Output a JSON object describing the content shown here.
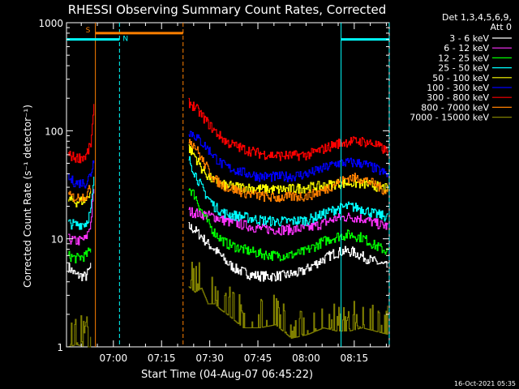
{
  "chart_data": {
    "type": "line",
    "title": "RHESSI Observing Summary Count Rates, Corrected",
    "xlabel": "Start Time (04-Aug-07 06:45:22)",
    "ylabel": "Corrected Count Rate (s⁻¹ detector⁻¹)",
    "yscale": "log",
    "ylim": [
      1,
      1000
    ],
    "x_units": "minutes after 06:45:22",
    "xlim": [
      0,
      100.5
    ],
    "x_ticks": [
      {
        "t": 14.6,
        "label": "07:00"
      },
      {
        "t": 29.6,
        "label": "07:15"
      },
      {
        "t": 44.6,
        "label": "07:30"
      },
      {
        "t": 59.6,
        "label": "07:45"
      },
      {
        "t": 74.6,
        "label": "08:00"
      },
      {
        "t": 89.6,
        "label": "08:15"
      }
    ],
    "y_ticks": [
      {
        "v": 1,
        "label": "1"
      },
      {
        "v": 10,
        "label": "10"
      },
      {
        "v": 100,
        "label": "100"
      },
      {
        "v": 1000,
        "label": "1000"
      }
    ],
    "legend": {
      "header": [
        "Det 1,3,4,5,6,9,",
        "Att 0"
      ],
      "placement": "top-right outside"
    },
    "series": [
      {
        "name": "3 - 6 keV",
        "color": "#ffffff",
        "segments": [
          {
            "x": [
              0.5,
              3,
              6,
              7.5
            ],
            "y": [
              5.5,
              4.6,
              4.5,
              5.5
            ]
          },
          {
            "x": [
              38,
              40,
              42,
              44,
              46,
              48,
              50,
              53,
              58,
              63,
              68,
              73,
              78,
              83,
              86,
              89,
              94,
              100
            ],
            "y": [
              13,
              12,
              10.5,
              9,
              8,
              7,
              6,
              5.2,
              4.6,
              4.5,
              4.6,
              4.9,
              6,
              7.3,
              7.7,
              7.6,
              6.5,
              5.5
            ]
          }
        ]
      },
      {
        "name": "6 - 12 keV",
        "color": "#ff33ff",
        "segments": [
          {
            "x": [
              0.5,
              3,
              6,
              7.5,
              8.5
            ],
            "y": [
              10,
              9.5,
              10,
              14,
              30
            ]
          },
          {
            "x": [
              38,
              42,
              46,
              50,
              55,
              60,
              65,
              70,
              75,
              80,
              84,
              88,
              92,
              96,
              100
            ],
            "y": [
              18,
              17,
              16,
              14.5,
              13.5,
              12.5,
              12.2,
              12.2,
              12.5,
              14,
              15.5,
              16,
              15.5,
              14,
              13
            ]
          }
        ]
      },
      {
        "name": "12 - 25 keV",
        "color": "#00ff00",
        "segments": [
          {
            "x": [
              0.5,
              3,
              6,
              7.5
            ],
            "y": [
              7,
              6.6,
              7,
              8
            ]
          },
          {
            "x": [
              38,
              40,
              42,
              44,
              46,
              48,
              50,
              55,
              60,
              65,
              70,
              74,
              80,
              84,
              88,
              92,
              96,
              100
            ],
            "y": [
              30,
              25,
              18,
              14,
              11.5,
              10,
              9,
              8,
              7.3,
              7,
              7.1,
              7.6,
              9.5,
              10.5,
              11,
              10.3,
              8.7,
              7.6
            ]
          }
        ]
      },
      {
        "name": "25 - 50 keV",
        "color": "#00ffff",
        "segments": [
          {
            "x": [
              0.5,
              3,
              6,
              7.5,
              8.5
            ],
            "y": [
              14,
              13.5,
              14,
              18,
              35
            ]
          },
          {
            "x": [
              38,
              40,
              42,
              44,
              46,
              48,
              50,
              55,
              60,
              65,
              70,
              75,
              80,
              84,
              88,
              92,
              96,
              100
            ],
            "y": [
              55,
              40,
              30,
              24,
              20,
              18,
              17,
              16,
              15,
              14.5,
              14.6,
              15,
              17,
              19,
              20,
              19,
              17,
              16
            ]
          }
        ]
      },
      {
        "name": "50 - 100 keV",
        "color": "#ffff00",
        "segments": [
          {
            "x": [
              0.5,
              3,
              6,
              7.5
            ],
            "y": [
              23,
              22,
              23,
              28
            ]
          },
          {
            "x": [
              38,
              40,
              42,
              44,
              46,
              48,
              50,
              55,
              60,
              65,
              70,
              75,
              80,
              84,
              88,
              92,
              96,
              100
            ],
            "y": [
              70,
              58,
              45,
              38,
              34,
              32,
              31,
              30,
              29,
              28.5,
              29,
              30,
              31,
              32.5,
              33,
              32.5,
              31,
              29
            ]
          }
        ]
      },
      {
        "name": "100 - 300 keV",
        "color": "#0000ff",
        "segments": [
          {
            "x": [
              0.5,
              3,
              6,
              7.5,
              8.5
            ],
            "y": [
              36,
              33,
              33,
              40,
              55
            ]
          },
          {
            "x": [
              38,
              40,
              42,
              44,
              46,
              48,
              50,
              55,
              60,
              65,
              70,
              75,
              80,
              84,
              88,
              92,
              96,
              100
            ],
            "y": [
              100,
              90,
              78,
              68,
              58,
              50,
              46,
              41,
              38,
              37.5,
              38,
              40,
              45,
              50,
              51,
              50,
              45,
              39
            ]
          }
        ]
      },
      {
        "name": "300 - 800 keV",
        "color": "#ff0000",
        "segments": [
          {
            "x": [
              0.5,
              3,
              6,
              7.5,
              8.5
            ],
            "y": [
              60,
              56,
              58,
              75,
              160
            ]
          },
          {
            "x": [
              38,
              40,
              42,
              44,
              46,
              48,
              50,
              55,
              60,
              65,
              70,
              75,
              80,
              84,
              88,
              92,
              96,
              100
            ],
            "y": [
              185,
              165,
              140,
              118,
              100,
              88,
              78,
              68,
              62,
              59,
              59,
              60,
              68,
              76,
              80,
              80,
              75,
              64
            ]
          }
        ]
      },
      {
        "name": "800 - 7000 keV",
        "color": "#ff8000",
        "segments": [
          {
            "x": [
              0.5,
              3,
              6,
              7.5
            ],
            "y": [
              25,
              24,
              25,
              30
            ]
          },
          {
            "x": [
              38,
              40,
              42,
              44,
              46,
              48,
              50,
              55,
              60,
              65,
              70,
              75,
              80,
              84,
              88,
              92,
              96,
              100
            ],
            "y": [
              85,
              72,
              55,
              44,
              36,
              32,
              30,
              27,
              25,
              24,
              24.5,
              25,
              28,
              33,
              37,
              36,
              32,
              27
            ]
          }
        ]
      },
      {
        "name": "7000 - 15000 keV",
        "color": "#808000",
        "segments": [
          {
            "x": [
              0.5,
              3,
              6,
              7.5
            ],
            "y": [
              1,
              1.05,
              1,
              1
            ]
          },
          {
            "x": [
              38,
              40,
              42,
              44,
              46,
              48,
              50,
              55,
              60,
              65,
              70,
              75,
              80,
              84,
              88,
              92,
              96,
              100
            ],
            "y": [
              3.6,
              3.2,
              3.5,
              2.5,
              2.5,
              2.2,
              2,
              1.5,
              1.5,
              1.6,
              1.2,
              1.3,
              1.5,
              1.4,
              1.4,
              1.5,
              1.4,
              1.3
            ]
          }
        ]
      }
    ],
    "annotations": [
      {
        "label": "S",
        "color": "#ff8000",
        "x_start": 9,
        "x_end": 36.3,
        "y": 800
      },
      {
        "label": "N",
        "color": "#00ffff",
        "x_start": 0,
        "x_end": 16.5,
        "y": 700
      },
      {
        "label": "",
        "color": "#00ffff",
        "x_start": 85.5,
        "x_end": 100.5,
        "y": 700
      }
    ],
    "vertical_lines": [
      {
        "t": 9,
        "color": "#ff8000",
        "style": "solid"
      },
      {
        "t": 16.5,
        "color": "#00ffff",
        "style": "dashed"
      },
      {
        "t": 36.3,
        "color": "#ff8000",
        "style": "dashed"
      },
      {
        "t": 85.5,
        "color": "#00ffff",
        "style": "solid"
      },
      {
        "t": 100.5,
        "color": "#00ffff",
        "style": "dashed"
      }
    ]
  },
  "footer_timestamp": "16-Oct-2021 05:35"
}
